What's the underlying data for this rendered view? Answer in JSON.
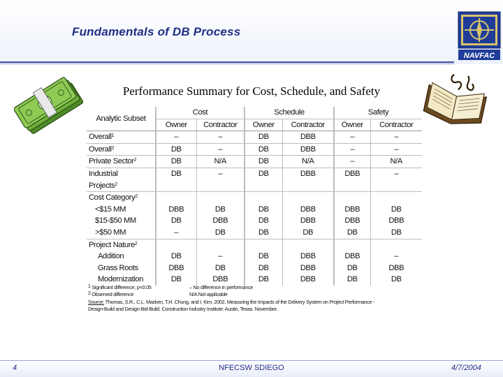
{
  "slide": {
    "title": "Fundamentals of DB Process",
    "subtitle": "Performance Summary for Cost, Schedule, and Safety",
    "logo_text": "NAVFAC",
    "page_number": "4",
    "footer_center": "NFECSW SDIEGO",
    "date": "4/7/2004"
  },
  "table": {
    "analytic_subset": "Analytic Subset",
    "groups": {
      "cost": "Cost",
      "schedule": "Schedule",
      "safety": "Safety"
    },
    "owner": "Owner",
    "contractor": "Contractor",
    "rows": [
      {
        "label": "Overall",
        "sup": "1",
        "vals": [
          "–",
          "–",
          "DB",
          "DBB",
          "–",
          "–"
        ]
      },
      {
        "label": "Overall",
        "sup": "2",
        "vals": [
          "DB",
          "–",
          "DB",
          "DBB",
          "–",
          "–"
        ]
      },
      {
        "label": "Private Sector",
        "sup": "2",
        "vals": [
          "DB",
          "N/A",
          "DB",
          "N/A",
          "–",
          "N/A"
        ]
      },
      {
        "label1": "Industrial",
        "label2": "Projects",
        "sup": "2",
        "vals": [
          "DB",
          "–",
          "DB",
          "DBB",
          "DBB",
          "–"
        ]
      }
    ],
    "cost_category": {
      "label": "Cost Category",
      "sup": "2",
      "items": [
        {
          "label": "<$15 MM",
          "vals": [
            "DBB",
            "DB",
            "DB",
            "DBB",
            "DBB",
            "DB"
          ]
        },
        {
          "label": "$15-$50 MM",
          "vals": [
            "DB",
            "DBB",
            "DB",
            "DBB",
            "DBB",
            "DBB"
          ]
        },
        {
          "label": ">$50 MM",
          "vals": [
            "–",
            "DB",
            "DB",
            "DB",
            "DB",
            "DB"
          ]
        }
      ]
    },
    "project_nature": {
      "label": "Project Nature",
      "sup": "2",
      "items": [
        {
          "label": "Addition",
          "vals": [
            "DB",
            "–",
            "DB",
            "DBB",
            "DBB",
            "–"
          ]
        },
        {
          "label": "Grass Roots",
          "vals": [
            "DBB",
            "DB",
            "DB",
            "DBB",
            "DB",
            "DBB"
          ]
        },
        {
          "label": "Modernization",
          "vals": [
            "DB",
            "DBB",
            "DB",
            "DBB",
            "DB",
            "DB"
          ]
        }
      ]
    }
  },
  "footnotes": {
    "fn1_num": "1",
    "fn1": "Significant difference, p<0.05",
    "fn2_num": "2",
    "fn2": "Observed difference",
    "dash_note": "– No difference in performance",
    "na_note": "N/A Not applicable",
    "source_label": "Source:",
    "source_line1": "Thomas, S.R., C.L. Macken, T.H. Chung, and I. Kim. 2002. Measuring the Impacts of the Delivery System on Project Performance -",
    "source_line2": "Design-Build and Design-Bid-Build. Construction Industry Institute: Austin, Texas. November."
  },
  "colors": {
    "title": "#1f2f86",
    "header_rule": "#3a4fa0",
    "money_green": "#6fae3a",
    "book_cream": "#f3e9c4"
  }
}
